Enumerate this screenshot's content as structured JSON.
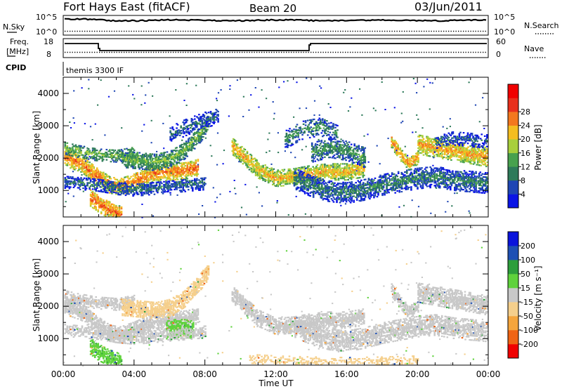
{
  "header": {
    "station": "Fort Hays East (fitACF)",
    "beam": "Beam 20",
    "date": "03/Jun/2011"
  },
  "top_panels": {
    "nsky_label": "N.Sky",
    "nsearch_label": "N.Search",
    "noise_ticks": [
      "10^5",
      "10^0"
    ],
    "freq_label_line1": "Freq.",
    "freq_label_line2": "[MHz]",
    "freq_ticks": [
      "18",
      "8"
    ],
    "nave_label": "Nave",
    "nave_ticks": [
      "60",
      "0"
    ],
    "cpid_label": "CPID",
    "cpid_value": "themis 3300 IF"
  },
  "colors": {
    "power_scale": [
      "#0a14e6",
      "#1e46b4",
      "#2e7a5a",
      "#48a14e",
      "#a8cf3c",
      "#f4bd20",
      "#f3781e",
      "#e8301c",
      "#f00000"
    ],
    "velocity_scale": [
      "#f00000",
      "#ef6414",
      "#f5a53c",
      "#f5cf8c",
      "#c8c8c8",
      "#5fd23c",
      "#2d9e3c",
      "#1e50b4",
      "#0a14dc"
    ]
  },
  "chart_data": [
    {
      "type": "heatmap",
      "name": "power",
      "xlabel": "",
      "ylabel": "Slant Range [km]",
      "colorbar_label": "Power [dB]",
      "colorbar_ticks": [
        "4",
        "8",
        "12",
        "16",
        "20",
        "24",
        "28"
      ],
      "xlim": [
        0,
        24
      ],
      "ylim": [
        180,
        4500
      ],
      "yticks": [
        1000,
        2000,
        3000,
        4000
      ],
      "bands": [
        {
          "x": [
            0.0,
            1.0,
            1.8,
            2.6,
            3.2,
            4.0,
            5.0,
            6.0,
            7.0,
            7.6
          ],
          "y": [
            2050,
            1850,
            1500,
            1200,
            1150,
            1300,
            1550,
            1600,
            1650,
            1750
          ],
          "width": 260,
          "level": 26,
          "density": 0.9
        },
        {
          "x": [
            0.0,
            0.8,
            1.8,
            3.0,
            4.0
          ],
          "y": [
            2350,
            2250,
            2150,
            2100,
            2200
          ],
          "width": 200,
          "level": 16,
          "density": 0.7
        },
        {
          "x": [
            1.5,
            2.0,
            2.5,
            3.0,
            3.3
          ],
          "y": [
            800,
            600,
            450,
            350,
            250
          ],
          "width": 260,
          "level": 27,
          "density": 0.85
        },
        {
          "x": [
            3.3,
            4.3,
            5.2,
            6.0,
            6.8,
            7.6,
            8.2
          ],
          "y": [
            2000,
            1950,
            1900,
            2000,
            2250,
            2700,
            3150
          ],
          "width": 260,
          "level": 16,
          "density": 0.85
        },
        {
          "x": [
            0.0,
            1.0,
            2.0,
            3.0,
            4.0,
            5.0,
            6.0,
            7.0,
            8.0
          ],
          "y": [
            1300,
            1250,
            1200,
            1100,
            1050,
            1100,
            1150,
            1200,
            1250
          ],
          "width": 200,
          "level": 10,
          "density": 0.65
        },
        {
          "x": [
            6.0,
            7.0,
            8.0,
            8.7
          ],
          "y": [
            2750,
            3000,
            3200,
            3350
          ],
          "width": 250,
          "level": 9,
          "density": 0.6
        },
        {
          "x": [
            9.5,
            10.2,
            11.0,
            12.0,
            13.0,
            14.0,
            15.0,
            16.0,
            17.0
          ],
          "y": [
            2400,
            2050,
            1650,
            1400,
            1450,
            1550,
            1600,
            1600,
            1700
          ],
          "width": 250,
          "level": 23,
          "density": 0.85
        },
        {
          "x": [
            13.0,
            14.0,
            15.0,
            16.0,
            17.0,
            18.0,
            19.0,
            20.0,
            21.0,
            22.0,
            23.0,
            24.0
          ],
          "y": [
            1400,
            1150,
            1000,
            950,
            1050,
            1200,
            1300,
            1400,
            1450,
            1350,
            1300,
            1250
          ],
          "width": 320,
          "level": 11,
          "density": 0.75
        },
        {
          "x": [
            14.0,
            15.0,
            16.0,
            17.0
          ],
          "y": [
            2200,
            2350,
            2250,
            2050
          ],
          "width": 300,
          "level": 13,
          "density": 0.7
        },
        {
          "x": [
            18.5,
            19.0,
            19.5,
            20.0
          ],
          "y": [
            2550,
            2150,
            1850,
            2050
          ],
          "width": 200,
          "level": 25,
          "density": 0.85
        },
        {
          "x": [
            20.0,
            21.0,
            22.0,
            23.0,
            24.0
          ],
          "y": [
            2450,
            2350,
            2250,
            2150,
            2050
          ],
          "width": 300,
          "level": 24,
          "density": 0.85
        },
        {
          "x": [
            12.5,
            13.5,
            14.5,
            15.5
          ],
          "y": [
            2600,
            2900,
            3000,
            2750
          ],
          "width": 280,
          "level": 12,
          "density": 0.5
        },
        {
          "x": [
            21.0,
            22.0,
            23.0,
            24.0
          ],
          "y": [
            2500,
            2650,
            2600,
            2550
          ],
          "width": 220,
          "level": 8,
          "density": 0.5
        }
      ]
    },
    {
      "type": "heatmap",
      "name": "velocity",
      "xlabel": "Time UT",
      "ylabel": "Slant Range [km]",
      "colorbar_label": "Velocity [m s⁻¹]",
      "colorbar_ticks": [
        "-200",
        "-100",
        "-50",
        "-15",
        "15",
        "50",
        "100",
        "200"
      ],
      "xlim": [
        0,
        24
      ],
      "ylim": [
        180,
        4500
      ],
      "xticks": [
        "00:00",
        "04:00",
        "08:00",
        "12:00",
        "16:00",
        "20:00",
        "00:00"
      ],
      "yticks": [
        1000,
        2000,
        3000,
        4000
      ],
      "bands": [
        {
          "x": [
            0.0,
            1.0,
            1.8,
            2.6,
            3.2,
            4.0,
            5.0,
            6.0,
            7.0,
            7.6
          ],
          "y": [
            2050,
            1850,
            1500,
            1200,
            1150,
            1300,
            1550,
            1600,
            1650,
            1750
          ],
          "width": 260,
          "level": 0,
          "density": 0.9
        },
        {
          "x": [
            0.0,
            0.8,
            1.8,
            3.0,
            4.0
          ],
          "y": [
            2350,
            2250,
            2150,
            2100,
            2200
          ],
          "width": 200,
          "level": 0,
          "density": 0.7
        },
        {
          "x": [
            1.5,
            2.0,
            2.5,
            3.0,
            3.3
          ],
          "y": [
            800,
            600,
            450,
            350,
            250
          ],
          "width": 260,
          "level": 40,
          "density": 0.85
        },
        {
          "x": [
            3.3,
            4.3,
            5.2,
            6.0,
            6.8,
            7.6,
            8.2
          ],
          "y": [
            2000,
            1950,
            1900,
            2000,
            2250,
            2700,
            3150
          ],
          "width": 260,
          "level": -30,
          "density": 0.85
        },
        {
          "x": [
            5.8,
            6.3,
            6.8,
            7.3
          ],
          "y": [
            1300,
            1350,
            1350,
            1300
          ],
          "width": 280,
          "level": 30,
          "density": 0.9
        },
        {
          "x": [
            0.0,
            1.0,
            2.0,
            3.0,
            4.0,
            5.0,
            6.0,
            7.0,
            8.0
          ],
          "y": [
            1300,
            1250,
            1200,
            1100,
            1050,
            1100,
            1150,
            1200,
            1250
          ],
          "width": 200,
          "level": 0,
          "density": 0.65
        },
        {
          "x": [
            9.5,
            10.2,
            11.0,
            12.0,
            13.0,
            14.0,
            15.0,
            16.0,
            17.0
          ],
          "y": [
            2400,
            2050,
            1650,
            1400,
            1450,
            1550,
            1600,
            1600,
            1700
          ],
          "width": 250,
          "level": 0,
          "density": 0.85
        },
        {
          "x": [
            13.0,
            14.0,
            15.0,
            16.0,
            17.0,
            18.0,
            19.0,
            20.0,
            21.0,
            22.0,
            23.0,
            24.0
          ],
          "y": [
            1400,
            1150,
            1000,
            950,
            1050,
            1200,
            1300,
            1400,
            1450,
            1350,
            1300,
            1250
          ],
          "width": 320,
          "level": 0,
          "density": 0.75
        },
        {
          "x": [
            18.5,
            19.0,
            19.5,
            20.0
          ],
          "y": [
            2550,
            2150,
            1850,
            2050
          ],
          "width": 200,
          "level": 0,
          "density": 0.85
        },
        {
          "x": [
            20.0,
            21.0,
            22.0,
            23.0,
            24.0
          ],
          "y": [
            2450,
            2350,
            2250,
            2150,
            2050
          ],
          "width": 300,
          "level": 0,
          "density": 0.85
        },
        {
          "x": [
            10.5,
            12.0,
            14.0,
            16.0,
            18.0,
            20.0
          ],
          "y": [
            380,
            330,
            300,
            280,
            300,
            330
          ],
          "width": 160,
          "level": -35,
          "density": 0.45
        }
      ]
    }
  ]
}
